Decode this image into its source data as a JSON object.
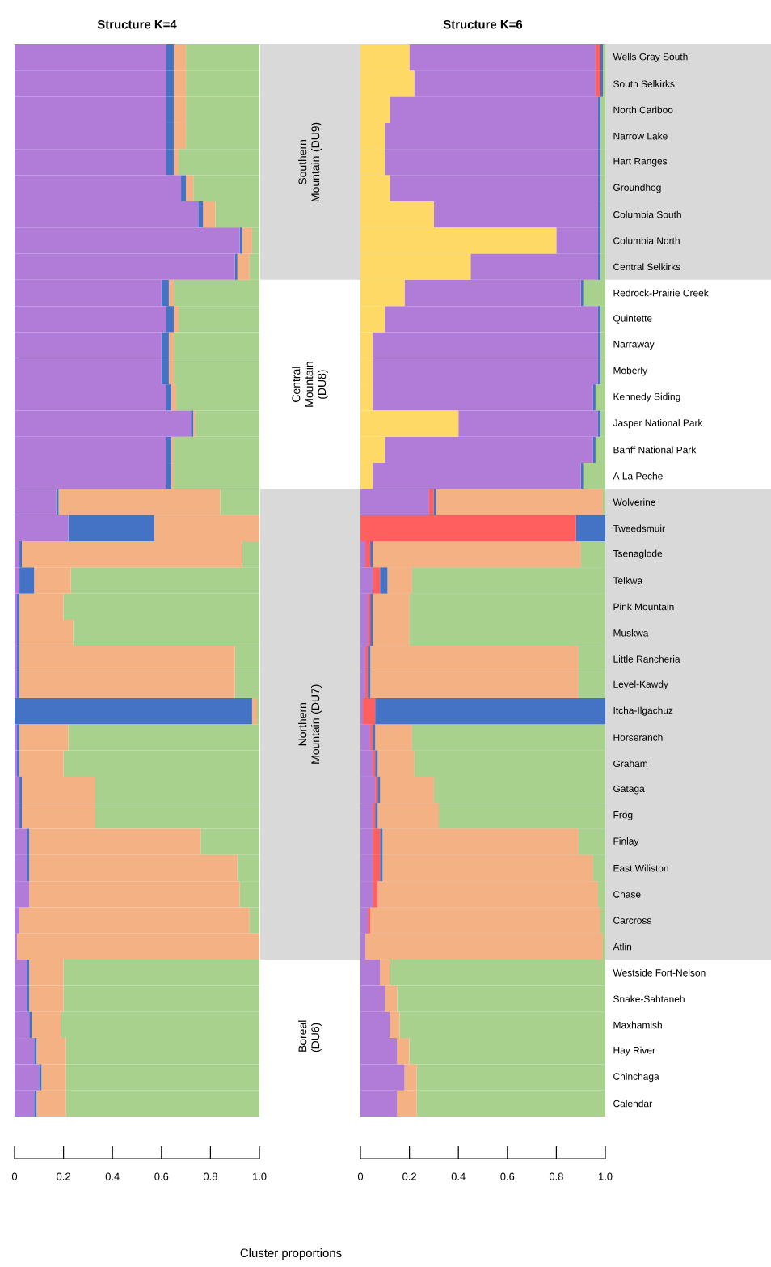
{
  "chart_data": [
    {
      "type": "bar",
      "stacked": true,
      "orientation": "horizontal",
      "title": "Structure K=4",
      "xlabel": "Cluster proportions",
      "tick_labels": "x",
      "categories": [
        null,
        null,
        null,
        null,
        null,
        null,
        null,
        null,
        null,
        null,
        null,
        null,
        null,
        null,
        null,
        null,
        null,
        null,
        null,
        null,
        null,
        null,
        null,
        null,
        null,
        null,
        null,
        null,
        null,
        null,
        null,
        null,
        null,
        null,
        null,
        null,
        null,
        null,
        null,
        null,
        null
      ],
      "xlim": [
        0,
        1
      ],
      "xticks": [
        0,
        0.2,
        0.4,
        0.6,
        0.8,
        {
          "value": 1,
          "label": "1.0"
        }
      ],
      "annotations": [
        "Southern Mountain (DU9)",
        "Central Mountain (DU8)",
        "Northern Mountain (DU7)",
        "Boreal (DU6)"
      ],
      "series": [
        {
          "color": "#b07cd8",
          "values": [
            0.62,
            0.62,
            0.62,
            0.62,
            0.62,
            0.68,
            0.75,
            0.92,
            0.9,
            0.6,
            0.62,
            0.6,
            0.6,
            0.62,
            0.72,
            0.62,
            0.62,
            0.17,
            0.22,
            0.02,
            0.02,
            0.01,
            0.01,
            0.01,
            0.01,
            0,
            0.01,
            0.01,
            0.02,
            0.02,
            0.05,
            0.05,
            0.06,
            0.02,
            0.01,
            0.05,
            0.05,
            0.06,
            0.08,
            0.1,
            0.08
          ]
        },
        {
          "color": "#4472c4",
          "values": [
            0.03,
            0.03,
            0.03,
            0.03,
            0.03,
            0.02,
            0.02,
            0.01,
            0.01,
            0.03,
            0.03,
            0.03,
            0.03,
            0.02,
            0.01,
            0.02,
            0.02,
            0.01,
            0.35,
            0.01,
            0.06,
            0.01,
            0.01,
            0.01,
            0.01,
            0.97,
            0.01,
            0.01,
            0.01,
            0.01,
            0.01,
            0.01,
            0,
            0,
            0,
            0.01,
            0.01,
            0.01,
            0.01,
            0.01,
            0.01
          ]
        },
        {
          "color": "#f4b183",
          "values": [
            0.05,
            0.05,
            0.05,
            0.05,
            0.02,
            0.03,
            0.05,
            0.04,
            0.05,
            0.02,
            0.02,
            0.02,
            0.02,
            0.02,
            0.01,
            0.01,
            0.01,
            0.66,
            0.43,
            0.9,
            0.15,
            0.18,
            0.22,
            0.88,
            0.88,
            0.02,
            0.2,
            0.18,
            0.3,
            0.3,
            0.7,
            0.85,
            0.86,
            0.94,
            0.99,
            0.14,
            0.14,
            0.12,
            0.12,
            0.1,
            0.12
          ]
        },
        {
          "color": "#a9d18e",
          "values": [
            0.3,
            0.3,
            0.3,
            0.3,
            0.33,
            0.27,
            0.18,
            0.03,
            0.04,
            0.35,
            0.33,
            0.35,
            0.35,
            0.34,
            0.26,
            0.35,
            0.35,
            0.16,
            0,
            0.07,
            0.77,
            0.8,
            0.76,
            0.1,
            0.1,
            0.01,
            0.78,
            0.8,
            0.67,
            0.67,
            0.24,
            0.09,
            0.08,
            0.04,
            0,
            0.8,
            0.8,
            0.81,
            0.79,
            0.79,
            0.79
          ]
        }
      ]
    },
    {
      "type": "bar",
      "stacked": true,
      "orientation": "horizontal",
      "title": "Structure K=6",
      "categories": [
        "Wells Gray South",
        "South Selkirks",
        "North Cariboo",
        "Narrow Lake",
        "Hart Ranges",
        "Groundhog",
        "Columbia South",
        "Columbia North",
        "Central Selkirks",
        "Redrock-Prairie Creek",
        "Quintette",
        "Narraway",
        "Moberly",
        "Kennedy Siding",
        "Jasper National Park",
        "Banff National Park",
        "A La Peche",
        "Wolverine",
        "Tweedsmuir",
        "Tsenaglode",
        "Telkwa",
        "Pink Mountain",
        "Muskwa",
        "Little Rancheria",
        "Level-Kawdy",
        "Itcha-Ilgachuz",
        "Horseranch",
        "Graham",
        "Gataga",
        "Frog",
        "Finlay",
        "East Wiliston",
        "Chase",
        "Carcross",
        "Atlin",
        "Westside Fort-Nelson",
        "Snake-Sahtaneh",
        "Maxhamish",
        "Hay River",
        "Chinchaga",
        "Calendar"
      ],
      "xlim": [
        0,
        1
      ],
      "xticks": [
        0,
        0.2,
        0.4,
        0.6,
        0.8,
        {
          "value": 1,
          "label": "1.0"
        }
      ],
      "series": [
        {
          "color": "#ffd966",
          "values": [
            0.2,
            0.22,
            0.12,
            0.1,
            0.1,
            0.12,
            0.3,
            0.8,
            0.45,
            0.18,
            0.1,
            0.05,
            0.05,
            0.05,
            0.4,
            0.1,
            0.05,
            0,
            0,
            0,
            0,
            0,
            0,
            0,
            0,
            0,
            0,
            0,
            0,
            0,
            0,
            0,
            0,
            0,
            0,
            0,
            0,
            0,
            0,
            0,
            0
          ]
        },
        {
          "color": "#b07cd8",
          "values": [
            0.76,
            0.74,
            0.85,
            0.87,
            0.87,
            0.85,
            0.67,
            0.17,
            0.52,
            0.72,
            0.87,
            0.92,
            0.92,
            0.9,
            0.57,
            0.85,
            0.85,
            0.28,
            0,
            0.02,
            0.05,
            0.03,
            0.03,
            0.02,
            0.02,
            0.01,
            0.04,
            0.05,
            0.06,
            0.05,
            0.05,
            0.05,
            0.05,
            0.03,
            0.02,
            0.08,
            0.1,
            0.12,
            0.15,
            0.18,
            0.15
          ]
        },
        {
          "color": "#ff5f5f",
          "values": [
            0.02,
            0.02,
            0,
            0,
            0,
            0,
            0,
            0,
            0,
            0,
            0,
            0,
            0,
            0,
            0,
            0,
            0,
            0.02,
            0.88,
            0.02,
            0.03,
            0.01,
            0.01,
            0.01,
            0.01,
            0.05,
            0.01,
            0.01,
            0.01,
            0.01,
            0.03,
            0.03,
            0.02,
            0.01,
            0,
            0,
            0,
            0,
            0,
            0,
            0
          ]
        },
        {
          "color": "#4472c4",
          "values": [
            0.01,
            0.01,
            0.01,
            0.01,
            0.01,
            0.01,
            0.01,
            0.01,
            0.01,
            0.01,
            0.01,
            0.01,
            0.01,
            0.01,
            0.01,
            0.01,
            0.01,
            0.01,
            0.12,
            0.01,
            0.03,
            0.01,
            0.01,
            0.01,
            0.01,
            0.94,
            0.01,
            0.01,
            0.01,
            0.01,
            0.01,
            0.01,
            0,
            0,
            0,
            0,
            0,
            0,
            0,
            0,
            0
          ]
        },
        {
          "color": "#f4b183",
          "values": [
            0,
            0,
            0,
            0,
            0,
            0,
            0,
            0,
            0,
            0,
            0,
            0,
            0,
            0,
            0,
            0,
            0,
            0.68,
            0,
            0.85,
            0.1,
            0.15,
            0.15,
            0.85,
            0.85,
            0,
            0.15,
            0.15,
            0.22,
            0.25,
            0.8,
            0.86,
            0.9,
            0.94,
            0.97,
            0.04,
            0.05,
            0.04,
            0.05,
            0.05,
            0.08
          ]
        },
        {
          "color": "#a9d18e",
          "values": [
            0.01,
            0.01,
            0.02,
            0.02,
            0.02,
            0.02,
            0.02,
            0.02,
            0.02,
            0.09,
            0.02,
            0.02,
            0.02,
            0.04,
            0.02,
            0.04,
            0.09,
            0.01,
            0,
            0.1,
            0.79,
            0.8,
            0.8,
            0.11,
            0.11,
            0,
            0.79,
            0.78,
            0.7,
            0.68,
            0.11,
            0.05,
            0.03,
            0.02,
            0.01,
            0.88,
            0.85,
            0.84,
            0.8,
            0.77,
            0.77
          ]
        }
      ]
    }
  ]
}
